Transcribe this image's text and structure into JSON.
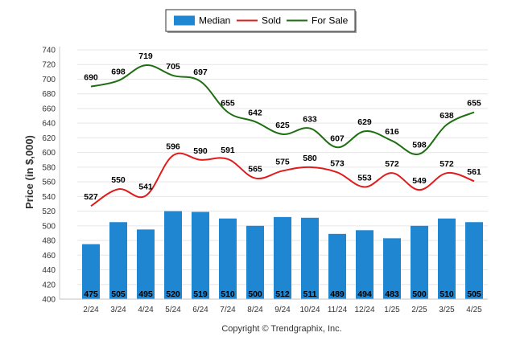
{
  "chart_data": {
    "type": "bar",
    "categories": [
      "2/24",
      "3/24",
      "4/24",
      "5/24",
      "6/24",
      "7/24",
      "8/24",
      "9/24",
      "10/24",
      "11/24",
      "12/24",
      "1/25",
      "2/25",
      "3/25",
      "4/25"
    ],
    "series": [
      {
        "name": "Median",
        "type": "bar",
        "color": "#1f86d1",
        "values": [
          475,
          505,
          495,
          520,
          519,
          510,
          500,
          512,
          511,
          489,
          494,
          483,
          500,
          510,
          505
        ]
      },
      {
        "name": "Sold",
        "type": "line",
        "color": "#e01b1b",
        "values": [
          527,
          550,
          541,
          596,
          590,
          591,
          565,
          575,
          580,
          573,
          553,
          572,
          549,
          572,
          561
        ]
      },
      {
        "name": "For Sale",
        "type": "line",
        "color": "#1e6e12",
        "values": [
          690,
          698,
          719,
          705,
          697,
          655,
          642,
          625,
          633,
          607,
          629,
          616,
          598,
          638,
          655
        ]
      }
    ],
    "ylabel": "Price (in $,000)",
    "xlabel": "",
    "ylim": [
      400,
      740
    ],
    "yticks": [
      400,
      420,
      440,
      460,
      480,
      500,
      520,
      540,
      560,
      580,
      600,
      620,
      640,
      660,
      680,
      700,
      720,
      740
    ],
    "grid": true,
    "legend_position": "top-center"
  },
  "footer": {
    "copyright": "Copyright © Trendgraphix, Inc."
  }
}
